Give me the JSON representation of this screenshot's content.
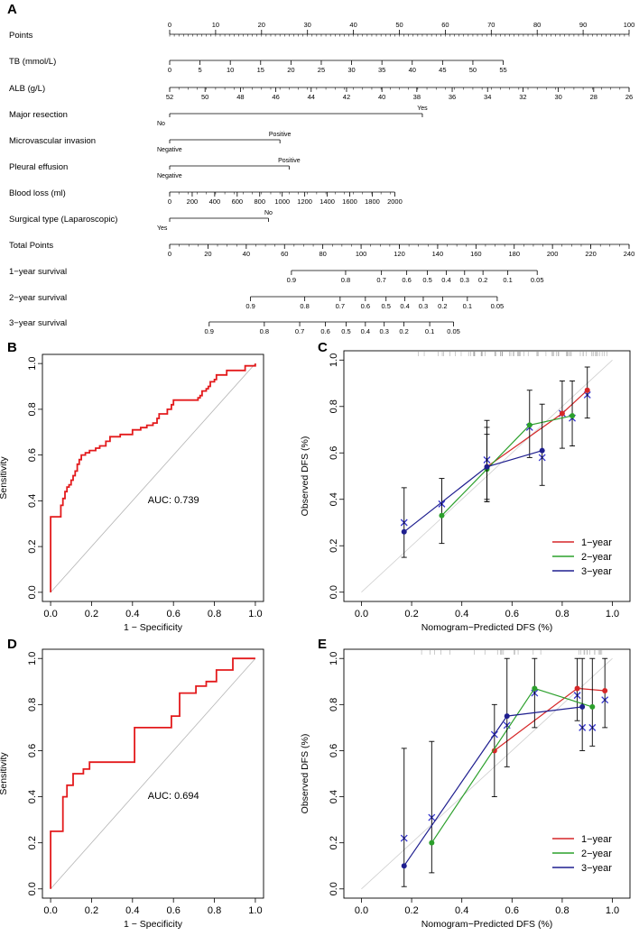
{
  "panels": {
    "a": "A",
    "b": "B",
    "c": "C",
    "d": "D",
    "e": "E"
  },
  "chart_data": [
    {
      "id": "A",
      "type": "nomogram",
      "rows": [
        {
          "label": "Points",
          "ticks": [
            {
              "v": 0,
              "t": "0"
            },
            {
              "v": 10,
              "t": "10"
            },
            {
              "v": 20,
              "t": "20"
            },
            {
              "v": 30,
              "t": "30"
            },
            {
              "v": 40,
              "t": "40"
            },
            {
              "v": 50,
              "t": "50"
            },
            {
              "v": 60,
              "t": "60"
            },
            {
              "v": 70,
              "t": "70"
            },
            {
              "v": 80,
              "t": "80"
            },
            {
              "v": 90,
              "t": "90"
            },
            {
              "v": 100,
              "t": "100"
            }
          ],
          "minor": 1,
          "labelSide": "above"
        },
        {
          "label": "TB (mmol/L)",
          "ticks": [
            {
              "v": 0,
              "t": "0"
            },
            {
              "v": 6.6,
              "t": "5"
            },
            {
              "v": 13.2,
              "t": "10"
            },
            {
              "v": 19.8,
              "t": "15"
            },
            {
              "v": 26.4,
              "t": "20"
            },
            {
              "v": 33,
              "t": "25"
            },
            {
              "v": 39.6,
              "t": "30"
            },
            {
              "v": 46.2,
              "t": "35"
            },
            {
              "v": 52.8,
              "t": "40"
            },
            {
              "v": 59.4,
              "t": "45"
            },
            {
              "v": 66,
              "t": "50"
            },
            {
              "v": 72.6,
              "t": "55"
            }
          ],
          "labelSide": "below"
        },
        {
          "label": "ALB (g/L)",
          "ticks": [
            {
              "v": 0,
              "t": "52"
            },
            {
              "v": 7.7,
              "t": "50"
            },
            {
              "v": 15.4,
              "t": "48"
            },
            {
              "v": 23.1,
              "t": "46"
            },
            {
              "v": 30.8,
              "t": "44"
            },
            {
              "v": 38.5,
              "t": "42"
            },
            {
              "v": 46.2,
              "t": "40"
            },
            {
              "v": 53.8,
              "t": "38"
            },
            {
              "v": 61.5,
              "t": "36"
            },
            {
              "v": 69.2,
              "t": "34"
            },
            {
              "v": 76.9,
              "t": "32"
            },
            {
              "v": 84.6,
              "t": "30"
            },
            {
              "v": 92.3,
              "t": "28"
            },
            {
              "v": 100,
              "t": "26"
            }
          ],
          "minor": 2,
          "labelSide": "below"
        },
        {
          "label": "Major resection",
          "type": "bin",
          "left": "No",
          "right": "Yes",
          "end": 55
        },
        {
          "label": "Microvascular invasion",
          "type": "bin",
          "left": "Negative",
          "right": "Positive",
          "end": 24
        },
        {
          "label": "Pleural effusion",
          "type": "bin",
          "left": "Negative",
          "right": "Positive",
          "end": 26
        },
        {
          "label": "Blood loss (ml)",
          "ticks": [
            {
              "v": 0,
              "t": "0"
            },
            {
              "v": 4.9,
              "t": "200"
            },
            {
              "v": 9.8,
              "t": "400"
            },
            {
              "v": 14.7,
              "t": "600"
            },
            {
              "v": 19.6,
              "t": "800"
            },
            {
              "v": 24.5,
              "t": "1000"
            },
            {
              "v": 29.4,
              "t": "1200"
            },
            {
              "v": 34.3,
              "t": "1400"
            },
            {
              "v": 39.2,
              "t": "1600"
            },
            {
              "v": 44.1,
              "t": "1800"
            },
            {
              "v": 49,
              "t": "2000"
            }
          ],
          "minor": 2,
          "labelSide": "below"
        },
        {
          "label": "Surgical type (Laparoscopic)",
          "type": "bin",
          "left": "Yes",
          "right": "No",
          "end": 21.5
        },
        {
          "label": "Total Points",
          "ticks": [
            {
              "v": 0,
              "t": "0"
            },
            {
              "v": 8.33,
              "t": "20"
            },
            {
              "v": 16.67,
              "t": "40"
            },
            {
              "v": 25,
              "t": "60"
            },
            {
              "v": 33.33,
              "t": "80"
            },
            {
              "v": 41.67,
              "t": "100"
            },
            {
              "v": 50,
              "t": "120"
            },
            {
              "v": 58.33,
              "t": "140"
            },
            {
              "v": 66.67,
              "t": "160"
            },
            {
              "v": 75,
              "t": "180"
            },
            {
              "v": 83.33,
              "t": "200"
            },
            {
              "v": 91.67,
              "t": "220"
            },
            {
              "v": 100,
              "t": "240"
            }
          ],
          "minor": 2.0833,
          "labelSide": "below"
        },
        {
          "label": "1−year survival",
          "ticks": [
            {
              "v": 26.5,
              "t": "0.9"
            },
            {
              "v": 38.3,
              "t": "0.8"
            },
            {
              "v": 46.1,
              "t": "0.7"
            },
            {
              "v": 51.6,
              "t": "0.6"
            },
            {
              "v": 56.1,
              "t": "0.5"
            },
            {
              "v": 60.2,
              "t": "0.4"
            },
            {
              "v": 64.2,
              "t": "0.3"
            },
            {
              "v": 68.2,
              "t": "0.2"
            },
            {
              "v": 73.6,
              "t": "0.1"
            },
            {
              "v": 80,
              "t": "0.05"
            }
          ],
          "labelSide": "below"
        },
        {
          "label": "2−year survival",
          "ticks": [
            {
              "v": 17.6,
              "t": "0.9"
            },
            {
              "v": 29.4,
              "t": "0.8"
            },
            {
              "v": 37.1,
              "t": "0.7"
            },
            {
              "v": 42.6,
              "t": "0.6"
            },
            {
              "v": 47.1,
              "t": "0.5"
            },
            {
              "v": 51.2,
              "t": "0.4"
            },
            {
              "v": 55.2,
              "t": "0.3"
            },
            {
              "v": 59.4,
              "t": "0.2"
            },
            {
              "v": 64.8,
              "t": "0.1"
            },
            {
              "v": 71.3,
              "t": "0.05"
            }
          ],
          "labelSide": "below"
        },
        {
          "label": "3−year survival",
          "ticks": [
            {
              "v": 8.6,
              "t": "0.9"
            },
            {
              "v": 20.6,
              "t": "0.8"
            },
            {
              "v": 28.3,
              "t": "0.7"
            },
            {
              "v": 33.9,
              "t": "0.6"
            },
            {
              "v": 38.4,
              "t": "0.5"
            },
            {
              "v": 42.6,
              "t": "0.4"
            },
            {
              "v": 46.7,
              "t": "0.3"
            },
            {
              "v": 51,
              "t": "0.2"
            },
            {
              "v": 56.6,
              "t": "0.1"
            },
            {
              "v": 61.8,
              "t": "0.05"
            }
          ],
          "labelSide": "below"
        }
      ]
    },
    {
      "id": "B",
      "type": "line",
      "subtype": "roc",
      "xlabel": "1 − Specificity",
      "ylabel": "Sensitivity",
      "xlim": [
        0,
        1
      ],
      "ylim": [
        0,
        1
      ],
      "ticks": [
        "0.0",
        "0.2",
        "0.4",
        "0.6",
        "0.8",
        "1.0"
      ],
      "annotation": "AUC: 0.739",
      "x": [
        0,
        0,
        0.05,
        0.05,
        0.06,
        0.06,
        0.07,
        0.07,
        0.08,
        0.08,
        0.09,
        0.09,
        0.1,
        0.1,
        0.11,
        0.11,
        0.12,
        0.12,
        0.13,
        0.13,
        0.14,
        0.14,
        0.15,
        0.15,
        0.17,
        0.17,
        0.19,
        0.19,
        0.22,
        0.22,
        0.24,
        0.24,
        0.27,
        0.27,
        0.29,
        0.29,
        0.34,
        0.34,
        0.4,
        0.4,
        0.44,
        0.44,
        0.47,
        0.47,
        0.5,
        0.5,
        0.52,
        0.52,
        0.53,
        0.53,
        0.57,
        0.57,
        0.59,
        0.59,
        0.6,
        0.6,
        0.72,
        0.72,
        0.73,
        0.73,
        0.74,
        0.74,
        0.76,
        0.76,
        0.77,
        0.77,
        0.78,
        0.78,
        0.8,
        0.8,
        0.81,
        0.81,
        0.86,
        0.86,
        0.95,
        0.95,
        1.0,
        1.0
      ],
      "y": [
        0,
        0.33,
        0.33,
        0.38,
        0.38,
        0.41,
        0.41,
        0.44,
        0.44,
        0.46,
        0.46,
        0.47,
        0.47,
        0.49,
        0.49,
        0.51,
        0.51,
        0.53,
        0.53,
        0.56,
        0.56,
        0.58,
        0.58,
        0.6,
        0.6,
        0.61,
        0.61,
        0.62,
        0.62,
        0.63,
        0.63,
        0.64,
        0.64,
        0.66,
        0.66,
        0.68,
        0.68,
        0.69,
        0.69,
        0.71,
        0.71,
        0.72,
        0.72,
        0.73,
        0.73,
        0.74,
        0.74,
        0.76,
        0.76,
        0.78,
        0.78,
        0.8,
        0.8,
        0.82,
        0.82,
        0.84,
        0.84,
        0.85,
        0.85,
        0.86,
        0.86,
        0.88,
        0.88,
        0.89,
        0.89,
        0.9,
        0.9,
        0.92,
        0.92,
        0.93,
        0.93,
        0.95,
        0.95,
        0.97,
        0.97,
        0.99,
        0.99,
        1.0
      ]
    },
    {
      "id": "C",
      "type": "scatter",
      "subtype": "calibration",
      "xlabel": "Nomogram−Predicted DFS (%)",
      "ylabel": "Observed DFS (%)",
      "xlim": [
        0,
        1
      ],
      "ylim": [
        0,
        1
      ],
      "ticks": [
        "0.0",
        "0.2",
        "0.4",
        "0.6",
        "0.8",
        "1.0"
      ],
      "legend": "bottom-right",
      "series": [
        {
          "name": "1−year",
          "color": "#d62728",
          "x": [
            0.5,
            0.8,
            0.9
          ],
          "y": [
            0.54,
            0.77,
            0.87
          ],
          "err_low": [
            0.4,
            0.62,
            0.75
          ],
          "err_high": [
            0.68,
            0.91,
            0.97
          ]
        },
        {
          "name": "2−year",
          "color": "#2ca02c",
          "x": [
            0.32,
            0.5,
            0.67,
            0.84
          ],
          "y": [
            0.33,
            0.53,
            0.72,
            0.76
          ],
          "err_low": [
            0.21,
            0.39,
            0.58,
            0.63
          ],
          "err_high": [
            0.49,
            0.71,
            0.87,
            0.91
          ]
        },
        {
          "name": "3−year",
          "color": "#1f1f8f",
          "x": [
            0.17,
            0.5,
            0.72
          ],
          "y": [
            0.26,
            0.54,
            0.61
          ],
          "err_low": [
            0.15,
            0.39,
            0.46
          ],
          "err_high": [
            0.45,
            0.74,
            0.81
          ]
        }
      ],
      "crosses": [
        {
          "color": "#3333cc",
          "x": [
            0.17,
            0.32,
            0.5,
            0.67,
            0.72,
            0.8,
            0.84,
            0.9
          ],
          "y": [
            0.3,
            0.38,
            0.57,
            0.71,
            0.58,
            0.77,
            0.75,
            0.85
          ]
        }
      ]
    },
    {
      "id": "D",
      "type": "line",
      "subtype": "roc",
      "xlabel": "1 − Specificity",
      "ylabel": "Sensitivity",
      "xlim": [
        0,
        1
      ],
      "ylim": [
        0,
        1
      ],
      "ticks": [
        "0.0",
        "0.2",
        "0.4",
        "0.6",
        "0.8",
        "1.0"
      ],
      "annotation": "AUC: 0.694",
      "x": [
        0,
        0,
        0.06,
        0.06,
        0.08,
        0.08,
        0.11,
        0.11,
        0.16,
        0.16,
        0.19,
        0.19,
        0.41,
        0.41,
        0.59,
        0.59,
        0.63,
        0.63,
        0.71,
        0.71,
        0.76,
        0.76,
        0.81,
        0.81,
        0.89,
        0.89,
        1.0
      ],
      "y": [
        0,
        0.25,
        0.25,
        0.4,
        0.4,
        0.45,
        0.45,
        0.5,
        0.5,
        0.52,
        0.52,
        0.55,
        0.55,
        0.7,
        0.7,
        0.75,
        0.75,
        0.85,
        0.85,
        0.88,
        0.88,
        0.9,
        0.9,
        0.95,
        0.95,
        1.0,
        1.0
      ]
    },
    {
      "id": "E",
      "type": "scatter",
      "subtype": "calibration",
      "xlabel": "Nomogram−Predicted DFS (%)",
      "ylabel": "Observed DFS (%)",
      "xlim": [
        0,
        1
      ],
      "ylim": [
        0,
        1
      ],
      "ticks": [
        "0.0",
        "0.2",
        "0.4",
        "0.6",
        "0.8",
        "1.0"
      ],
      "legend": "bottom-right",
      "series": [
        {
          "name": "1−year",
          "color": "#d62728",
          "x": [
            0.53,
            0.86,
            0.97
          ],
          "y": [
            0.6,
            0.87,
            0.86
          ],
          "err_low": [
            0.4,
            0.73,
            0.7
          ],
          "err_high": [
            0.8,
            1.0,
            1.0
          ]
        },
        {
          "name": "2−year",
          "color": "#2ca02c",
          "x": [
            0.28,
            0.69,
            0.92
          ],
          "y": [
            0.2,
            0.87,
            0.79
          ],
          "err_low": [
            0.07,
            0.7,
            0.62
          ],
          "err_high": [
            0.64,
            1.0,
            1.0
          ]
        },
        {
          "name": "3−year",
          "color": "#1f1f8f",
          "x": [
            0.17,
            0.58,
            0.88
          ],
          "y": [
            0.1,
            0.75,
            0.79
          ],
          "err_low": [
            0.01,
            0.53,
            0.6
          ],
          "err_high": [
            0.61,
            1.0,
            1.0
          ]
        }
      ],
      "crosses": [
        {
          "color": "#3333cc",
          "x": [
            0.17,
            0.28,
            0.53,
            0.58,
            0.69,
            0.86,
            0.88,
            0.92,
            0.97
          ],
          "y": [
            0.22,
            0.31,
            0.67,
            0.71,
            0.85,
            0.84,
            0.7,
            0.7,
            0.82
          ]
        }
      ]
    }
  ]
}
